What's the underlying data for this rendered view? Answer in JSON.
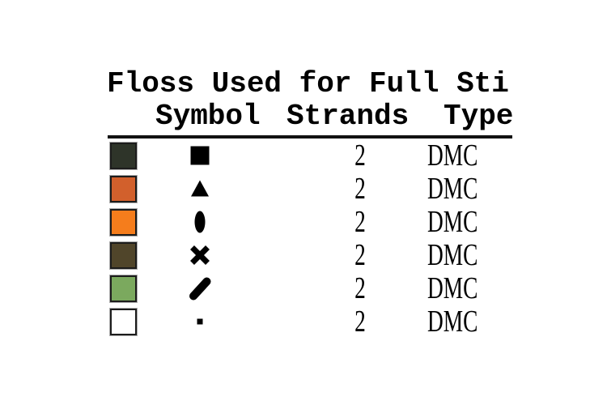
{
  "title": "Floss Used for Full Sti",
  "table": {
    "headers": [
      "Symbol",
      "Strands",
      "Type"
    ],
    "rows": [
      {
        "swatch_color": "#2e3429",
        "symbol": "filled-square",
        "strands": "2",
        "type": "DMC"
      },
      {
        "swatch_color": "#d2602c",
        "symbol": "filled-triangle",
        "strands": "2",
        "type": "DMC"
      },
      {
        "swatch_color": "#f57d1c",
        "symbol": "filled-ellipse",
        "strands": "2",
        "type": "DMC"
      },
      {
        "swatch_color": "#50452a",
        "symbol": "bold-x",
        "strands": "2",
        "type": "DMC"
      },
      {
        "swatch_color": "#7ba95e",
        "symbol": "thick-slash",
        "strands": "2",
        "type": "DMC"
      },
      {
        "swatch_color": "#ffffff",
        "symbol": "small-square",
        "strands": "2",
        "type": "DMC"
      }
    ]
  },
  "colors": {
    "text": "#000000",
    "rule": "#121212",
    "background": "#ffffff"
  }
}
